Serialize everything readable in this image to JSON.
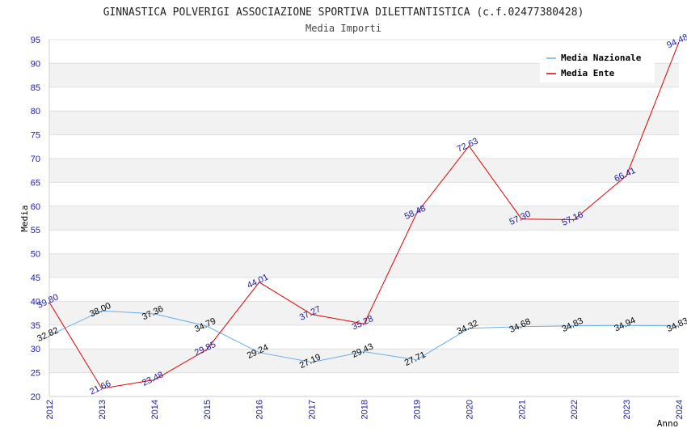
{
  "chart_data": {
    "type": "line",
    "title": "GINNASTICA POLVERIGI ASSOCIAZIONE SPORTIVA DILETTANTISTICA (c.f.02477380428)",
    "subtitle": "Media Importi",
    "xlabel": "Anno",
    "ylabel": "Media",
    "ylim": [
      20,
      95
    ],
    "yticks": [
      "20",
      "25",
      "30",
      "35",
      "40",
      "45",
      "50",
      "55",
      "60",
      "65",
      "70",
      "75",
      "80",
      "85",
      "90",
      "95"
    ],
    "x": [
      "2012",
      "2013",
      "2014",
      "2015",
      "2016",
      "2017",
      "2018",
      "2019",
      "2020",
      "2021",
      "2022",
      "2023",
      "2024"
    ],
    "grid": true,
    "legend_position": "top-right",
    "series": [
      {
        "name": "Media Nazionale",
        "color": "#6aaee8",
        "label_color": "#000000",
        "values": [
          32.82,
          38.0,
          37.36,
          34.79,
          29.24,
          27.19,
          29.43,
          27.71,
          34.32,
          34.68,
          34.83,
          34.94,
          34.83
        ],
        "labels": [
          "32.82",
          "38.00",
          "37.36",
          "34.79",
          "29.24",
          "27.19",
          "29.43",
          "27.71",
          "34.32",
          "34.68",
          "34.83",
          "34.94",
          "34.83"
        ]
      },
      {
        "name": "Media Ente",
        "color": "#e00000",
        "label_color": "#1a1aa6",
        "values": [
          39.8,
          21.66,
          23.48,
          29.85,
          44.01,
          37.27,
          35.28,
          58.48,
          72.63,
          57.3,
          57.16,
          66.41,
          94.48
        ],
        "labels": [
          "39.80",
          "21.66",
          "23.48",
          "29.85",
          "44.01",
          "37.27",
          "35.28",
          "58.48",
          "72.63",
          "57.30",
          "57.16",
          "66.41",
          "94.48"
        ]
      }
    ]
  }
}
